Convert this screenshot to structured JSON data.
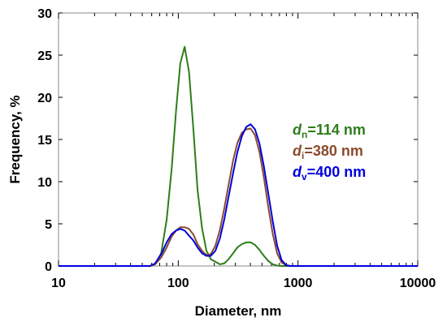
{
  "chart_data": {
    "type": "line",
    "title": "",
    "xlabel": "Diameter, nm",
    "ylabel": "Frequency, %",
    "xscale": "log",
    "xlim": [
      10,
      10000
    ],
    "ylim": [
      0,
      30
    ],
    "x_ticks": [
      "10",
      "100",
      "1000",
      "10000"
    ],
    "y_ticks": [
      "0",
      "5",
      "10",
      "15",
      "20",
      "25",
      "30"
    ],
    "grid": false,
    "legend_position": "right",
    "series": [
      {
        "name": "dn=114 nm",
        "label_base": "d",
        "label_sub": "n",
        "label_rest": "=114 nm",
        "color": "#2e7d1a",
        "x": [
          10,
          58,
          64,
          72,
          80,
          88,
          96,
          104,
          113,
          123,
          134,
          145,
          158,
          172,
          187,
          204,
          222,
          242,
          263,
          287,
          312,
          340,
          370,
          402,
          438,
          477,
          519,
          565,
          615,
          670,
          730,
          795,
          865,
          1000,
          10000
        ],
        "y": [
          0,
          0,
          0.2,
          1.5,
          5.5,
          11.5,
          18.5,
          24,
          26,
          23,
          16,
          9,
          4.5,
          1.8,
          0.8,
          0.5,
          0.2,
          0.3,
          0.8,
          1.5,
          2.2,
          2.6,
          2.8,
          2.8,
          2.5,
          1.9,
          1.2,
          0.6,
          0.2,
          0.05,
          0,
          0,
          0,
          0,
          0
        ]
      },
      {
        "name": "di=380 nm",
        "label_base": "d",
        "label_sub": "i",
        "label_rest": "=380 nm",
        "color": "#8b4a2c",
        "x": [
          10,
          58,
          64,
          72,
          80,
          88,
          96,
          104,
          113,
          123,
          134,
          145,
          158,
          172,
          187,
          204,
          222,
          242,
          263,
          287,
          312,
          340,
          370,
          402,
          438,
          477,
          519,
          565,
          615,
          670,
          730,
          795,
          865,
          1000,
          10000
        ],
        "y": [
          0,
          0,
          0.2,
          1.0,
          2.2,
          3.5,
          4.2,
          4.6,
          4.6,
          4.4,
          3.7,
          2.6,
          1.8,
          1.3,
          1.4,
          2.4,
          4.2,
          6.8,
          9.6,
          12.5,
          14.6,
          15.8,
          16.2,
          16.3,
          15.5,
          13.5,
          10.5,
          7.0,
          3.8,
          1.5,
          0.4,
          0.1,
          0,
          0,
          0
        ]
      },
      {
        "name": "dv=400 nm",
        "label_base": "d",
        "label_sub": "v",
        "label_rest": "=400 nm",
        "color": "#0000dd",
        "x": [
          10,
          58,
          64,
          72,
          80,
          88,
          96,
          104,
          113,
          123,
          134,
          145,
          158,
          172,
          187,
          204,
          222,
          242,
          263,
          287,
          312,
          340,
          370,
          402,
          438,
          477,
          519,
          565,
          615,
          670,
          730,
          795,
          865,
          1000,
          10000
        ],
        "y": [
          0,
          0,
          0.3,
          1.4,
          2.8,
          3.8,
          4.2,
          4.4,
          4.2,
          3.6,
          3.0,
          2.2,
          1.5,
          1.2,
          1.2,
          1.8,
          3.2,
          5.5,
          8.2,
          11.0,
          13.5,
          15.4,
          16.5,
          16.8,
          16.2,
          14.5,
          11.8,
          8.6,
          5.3,
          2.4,
          0.7,
          0.1,
          0,
          0,
          0
        ]
      }
    ]
  }
}
